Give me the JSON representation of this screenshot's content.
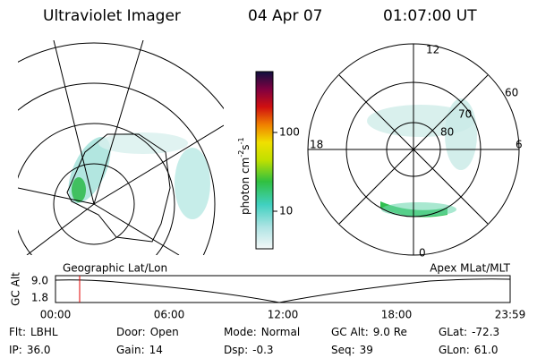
{
  "header": {
    "title": "Ultraviolet Imager",
    "date": "04 Apr 07",
    "time": "01:07:00 UT"
  },
  "colorbar": {
    "label": "photon cm",
    "exp1": "-2",
    "unit2": "s",
    "exp2": "-1",
    "ticks": [
      "100",
      "10"
    ]
  },
  "left_map": {
    "label": "Geographic Lat/Lon"
  },
  "right_map": {
    "label": "Apex MLat/MLT",
    "mlt_labels": [
      "12",
      "18",
      "6",
      "0"
    ],
    "lat_labels": [
      "60",
      "70",
      "80"
    ]
  },
  "timeline": {
    "ylabel": "GC Alt",
    "yticks": [
      "9.0",
      "1.8"
    ],
    "xticks": [
      "00:00",
      "06:00",
      "12:00",
      "18:00",
      "23:59"
    ]
  },
  "footer": {
    "fields": [
      {
        "label": "Flt:",
        "value": "LBHL"
      },
      {
        "label": "IP:",
        "value": "36.0"
      },
      {
        "label": "Door:",
        "value": "Open"
      },
      {
        "label": "Gain:",
        "value": "14"
      },
      {
        "label": "Mode:",
        "value": "Normal"
      },
      {
        "label": "Dsp:",
        "value": "-0.3"
      },
      {
        "label": "GC Alt:",
        "value": "9.0 Re"
      },
      {
        "label": "Seq:",
        "value": "39"
      },
      {
        "label": "GLat:",
        "value": "-72.3"
      },
      {
        "label": "GLon:",
        "value": "61.0"
      }
    ]
  }
}
